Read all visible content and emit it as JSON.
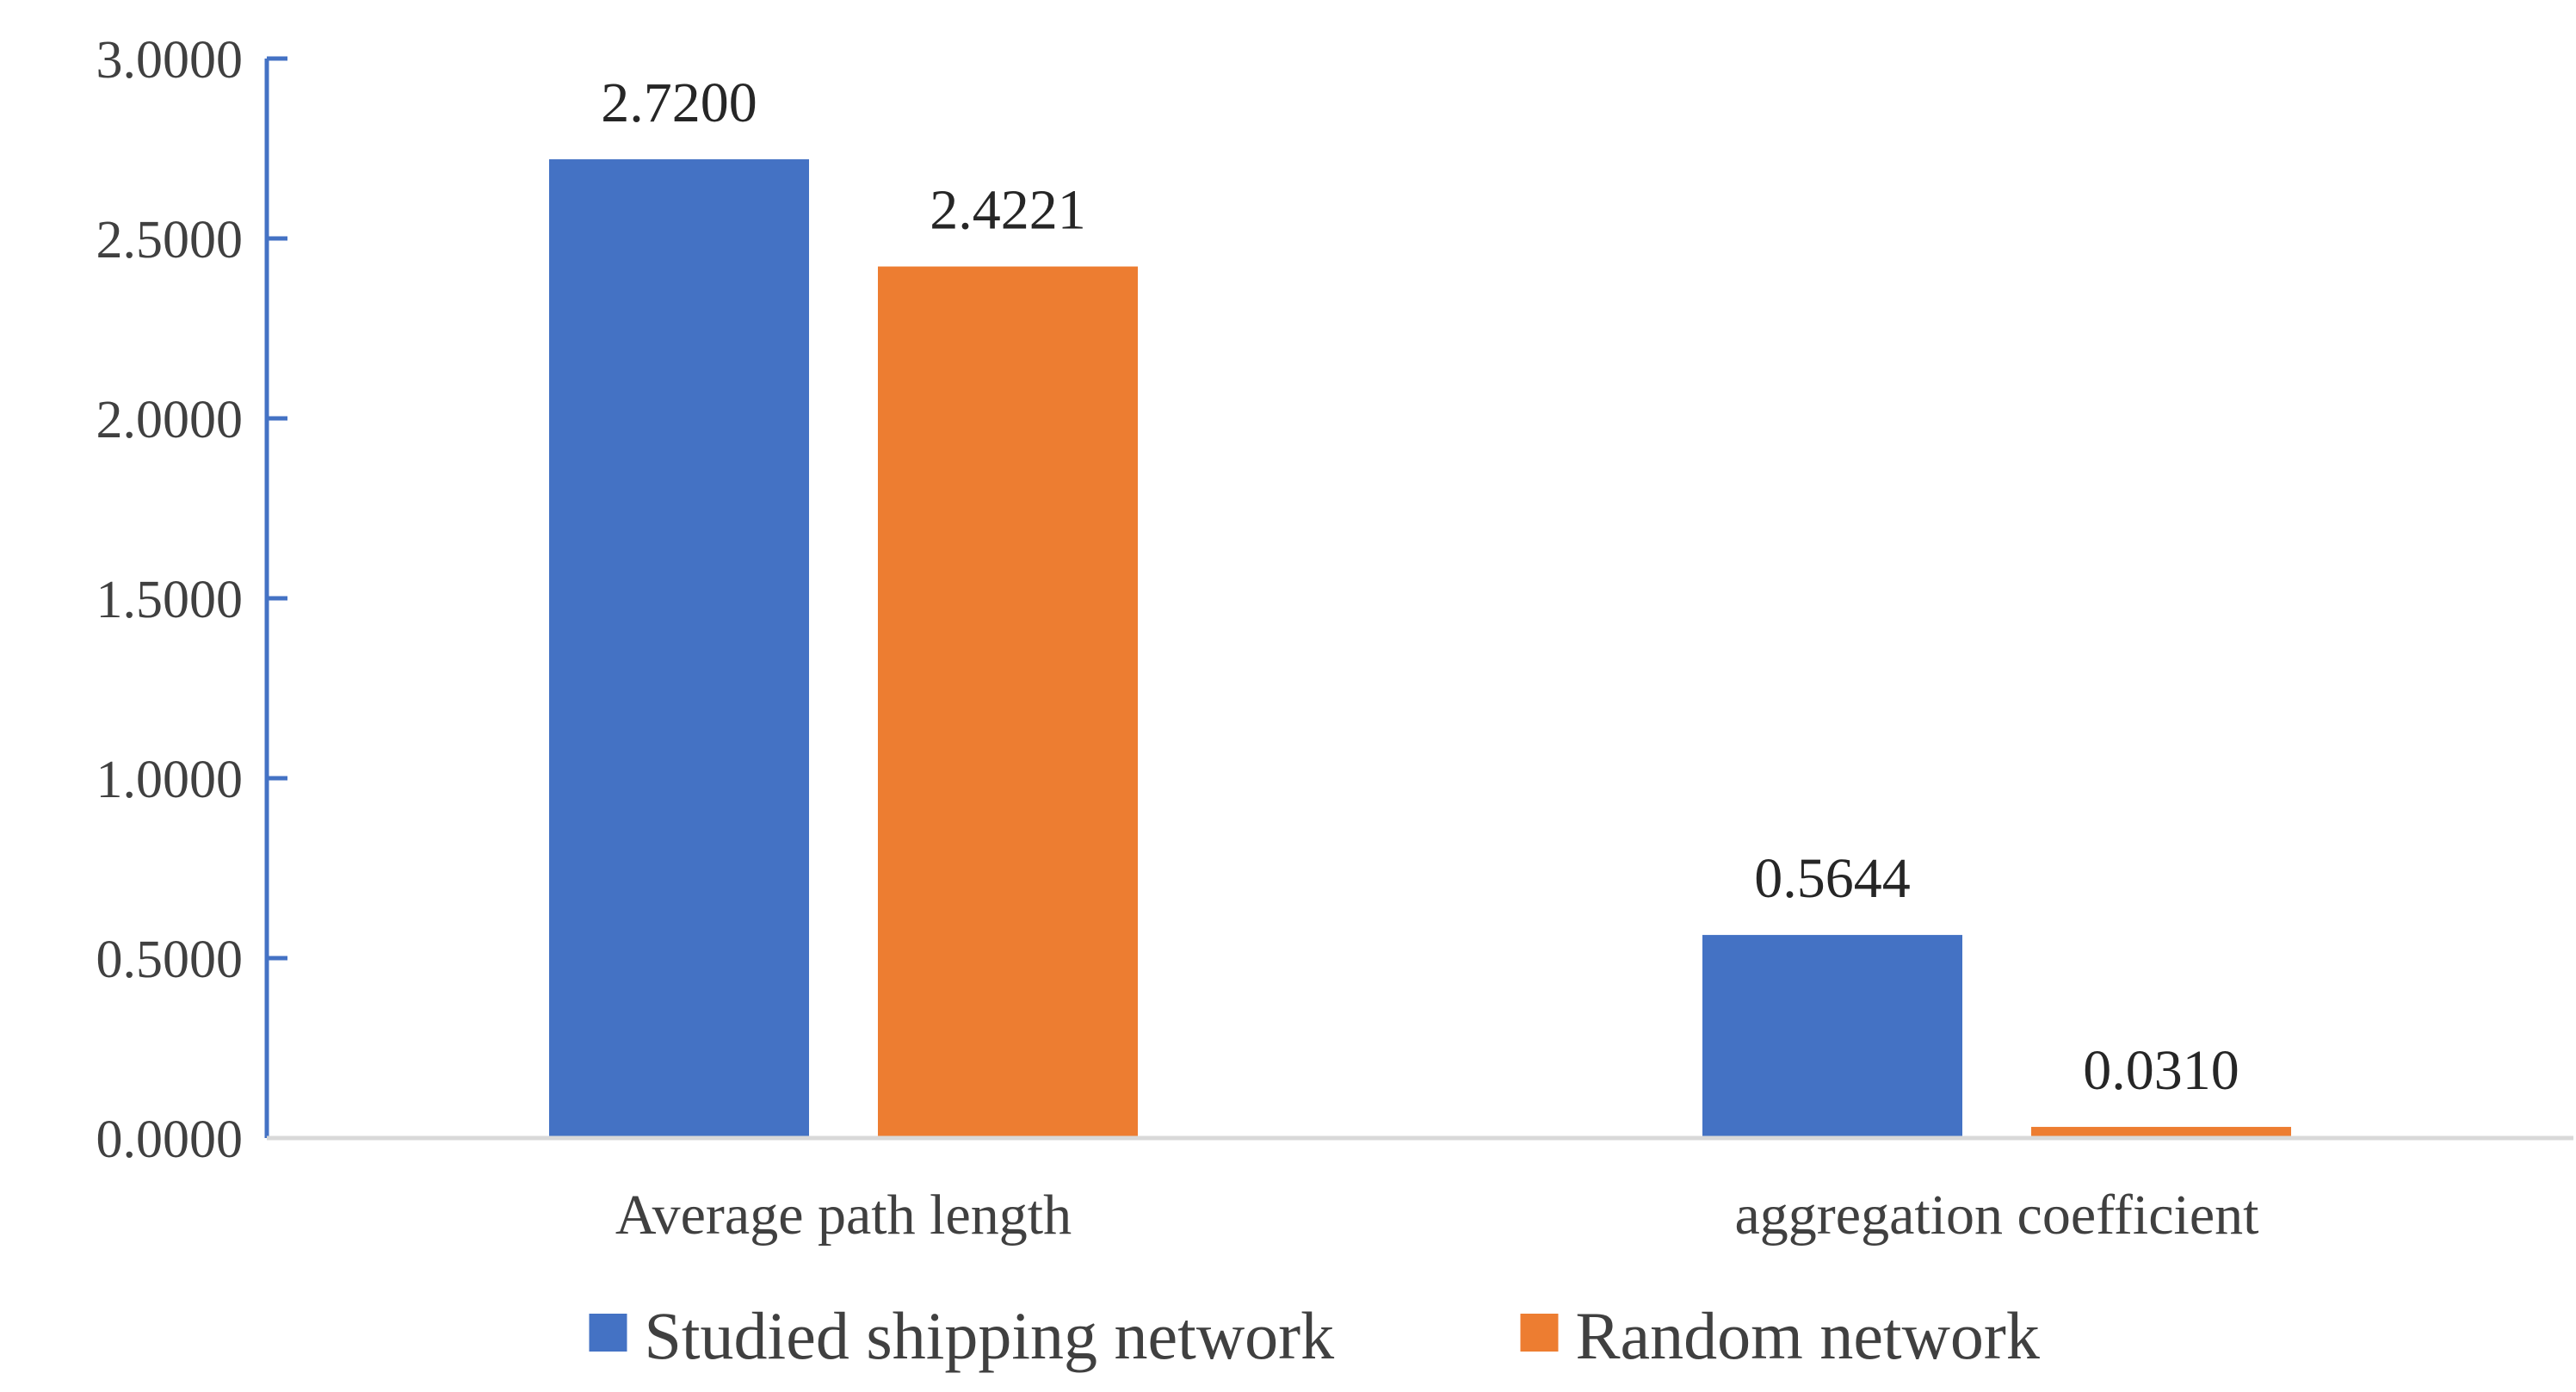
{
  "chart_data": {
    "type": "bar",
    "categories": [
      "Average path length",
      "aggregation coefficient"
    ],
    "series": [
      {
        "name": "Studied shipping network",
        "values": [
          2.72,
          0.5644
        ],
        "labels": [
          "2.7200",
          "0.5644"
        ],
        "color": "#4472C4"
      },
      {
        "name": "Random network",
        "values": [
          2.4221,
          0.031
        ],
        "labels": [
          "2.4221",
          "0.0310"
        ],
        "color": "#ED7D31"
      }
    ],
    "y_ticks": [
      {
        "value": 0,
        "label": "0.0000"
      },
      {
        "value": 0.5,
        "label": "0.5000"
      },
      {
        "value": 1,
        "label": "1.0000"
      },
      {
        "value": 1.5,
        "label": "1.5000"
      },
      {
        "value": 2,
        "label": "2.0000"
      },
      {
        "value": 2.5,
        "label": "2.5000"
      },
      {
        "value": 3,
        "label": "3.0000"
      }
    ],
    "ylim": [
      0,
      3
    ],
    "title": "",
    "xlabel": "",
    "ylabel": "",
    "grid": false,
    "legend_position": "bottom",
    "axis_color": "#4472C4",
    "baseline_color": "#D9D9D9"
  }
}
